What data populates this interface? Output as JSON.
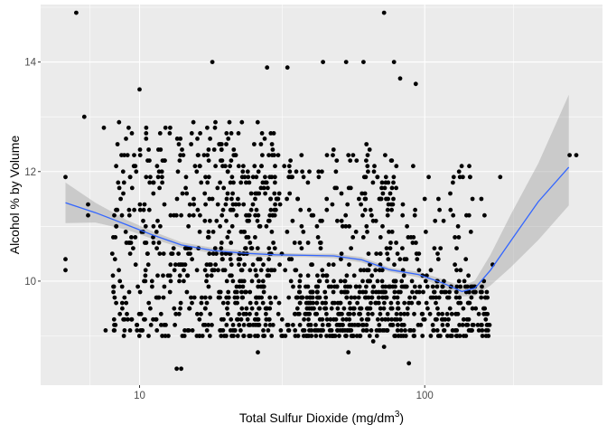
{
  "chart_data": {
    "type": "scatter",
    "title": "",
    "xlabel": "Total Sulfur Dioxide (mg/dm3)",
    "xlabel_parts": {
      "main": "Total Sulfur Dioxide (mg",
      "slash": "/",
      "unit": "dm",
      "sup": "3",
      "close": ")"
    },
    "ylabel": "Alcohol % by Volume",
    "x_scale": "log10",
    "xlim": [
      4.5,
      420
    ],
    "ylim": [
      8.1,
      15.05
    ],
    "x_ticks": [
      10,
      100
    ],
    "x_tick_labels": [
      "10",
      "100"
    ],
    "y_ticks": [
      10,
      12,
      14
    ],
    "y_tick_labels": [
      "10",
      "12",
      "14"
    ],
    "grid": true,
    "legend": "none",
    "colors": {
      "panel": "#ebebeb",
      "grid_major": "#ffffff",
      "points": "#000000",
      "smooth_line": "#3366ff",
      "confidence_band": "#999999"
    },
    "smooth": {
      "method": "loess",
      "x": [
        5.5,
        7,
        9,
        11,
        14,
        18,
        23,
        30,
        38,
        48,
        60,
        75,
        95,
        115,
        135,
        150,
        170,
        200,
        250,
        320
      ],
      "y": [
        11.43,
        11.25,
        11.03,
        10.85,
        10.66,
        10.56,
        10.51,
        10.48,
        10.47,
        10.46,
        10.39,
        10.21,
        10.12,
        9.97,
        9.81,
        9.87,
        10.2,
        10.73,
        11.45,
        12.08
      ],
      "lower": [
        11.06,
        11.07,
        10.94,
        10.78,
        10.61,
        10.51,
        10.46,
        10.44,
        10.44,
        10.42,
        10.34,
        10.17,
        10.07,
        9.9,
        9.72,
        9.73,
        9.92,
        10.25,
        10.75,
        11.38
      ],
      "upper": [
        11.8,
        11.43,
        11.12,
        10.92,
        10.71,
        10.61,
        10.56,
        10.52,
        10.5,
        10.5,
        10.44,
        10.25,
        10.17,
        10.04,
        9.9,
        10.01,
        10.48,
        11.21,
        12.15,
        13.4
      ]
    },
    "points": [
      [
        6,
        14.9
      ],
      [
        10,
        13.5
      ],
      [
        18,
        14.0
      ],
      [
        28,
        13.9
      ],
      [
        33,
        13.9
      ],
      [
        44,
        14.0
      ],
      [
        53,
        14.0
      ],
      [
        61,
        14.0
      ],
      [
        72,
        14.9
      ],
      [
        78,
        14.0
      ],
      [
        82,
        13.7
      ],
      [
        93,
        13.6
      ],
      [
        5.5,
        11.9
      ],
      [
        5.5,
        10.4
      ],
      [
        5.5,
        10.2
      ],
      [
        6.4,
        13.0
      ],
      [
        6.6,
        11.4
      ],
      [
        6.6,
        11.2
      ],
      [
        7.5,
        12.8
      ],
      [
        7.6,
        9.1
      ],
      [
        8.2,
        10.4
      ],
      [
        8.7,
        9.5
      ],
      [
        9.4,
        12.7
      ],
      [
        9.8,
        9.1
      ],
      [
        11.4,
        9.3
      ],
      [
        13.5,
        8.4
      ],
      [
        14.0,
        8.4
      ],
      [
        26,
        8.7
      ],
      [
        54,
        8.7
      ],
      [
        66,
        8.9
      ],
      [
        72,
        8.8
      ],
      [
        88,
        8.5
      ],
      [
        105,
        9.0
      ],
      [
        140,
        9.2
      ],
      [
        150,
        9.9
      ],
      [
        158,
        11.5
      ],
      [
        162,
        11.2
      ],
      [
        173,
        10.3
      ],
      [
        184,
        11.9
      ],
      [
        322,
        12.3
      ],
      [
        340,
        12.3
      ]
    ],
    "clusters": [
      {
        "x_range": [
          8,
          30
        ],
        "y_range": [
          9.0,
          12.9
        ],
        "count": 500
      },
      {
        "x_range": [
          20,
          80
        ],
        "y_range": [
          9.0,
          12.5
        ],
        "count": 400
      },
      {
        "x_range": [
          35,
          170
        ],
        "y_range": [
          9.0,
          10.0
        ],
        "count": 350
      },
      {
        "x_range": [
          60,
          150
        ],
        "y_range": [
          9.8,
          12.2
        ],
        "count": 100
      }
    ]
  }
}
